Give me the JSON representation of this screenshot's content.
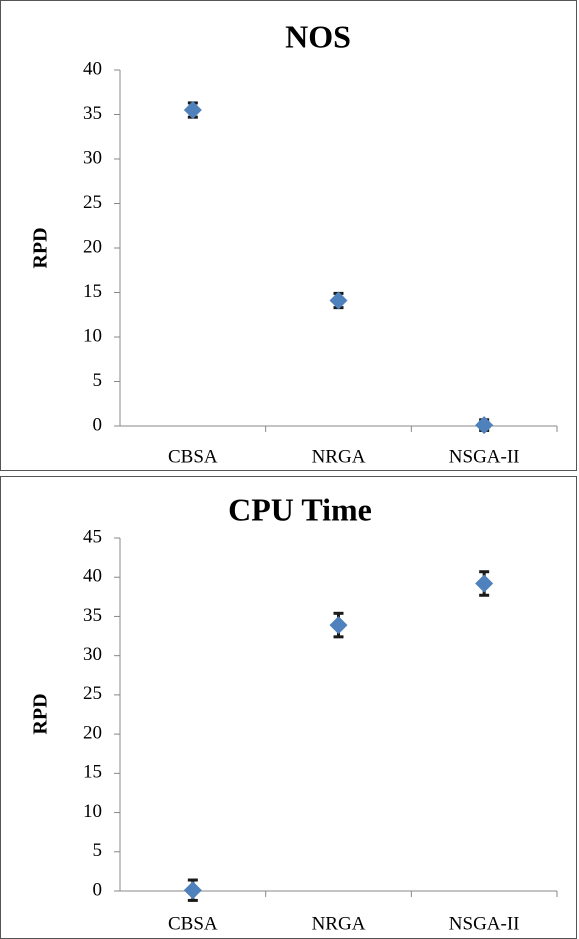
{
  "chart_data": [
    {
      "type": "scatter",
      "title": "NOS",
      "y_label": "RPD",
      "categories": [
        "CBSA",
        "NRGA",
        "NSGA-II"
      ],
      "series": [
        {
          "color": "#4f81bd",
          "values": [
            35.5,
            14.1,
            0.1
          ],
          "errors": [
            0.8,
            0.8,
            0.6
          ]
        }
      ],
      "ylim": [
        0,
        40
      ],
      "yticks": [
        0,
        5,
        10,
        15,
        20,
        25,
        30,
        35,
        40
      ],
      "error_color": "#1a1a1a"
    },
    {
      "type": "scatter",
      "title": "CPU Time",
      "y_label": "RPD",
      "categories": [
        "CBSA",
        "NRGA",
        "NSGA-II"
      ],
      "series": [
        {
          "color": "#4f81bd",
          "values": [
            0.1,
            33.9,
            39.2
          ],
          "errors": [
            1.3,
            1.5,
            1.5
          ]
        }
      ],
      "ylim": [
        0,
        45
      ],
      "yticks": [
        0,
        5,
        10,
        15,
        20,
        25,
        30,
        35,
        40,
        45
      ],
      "error_color": "#1a1a1a"
    }
  ]
}
